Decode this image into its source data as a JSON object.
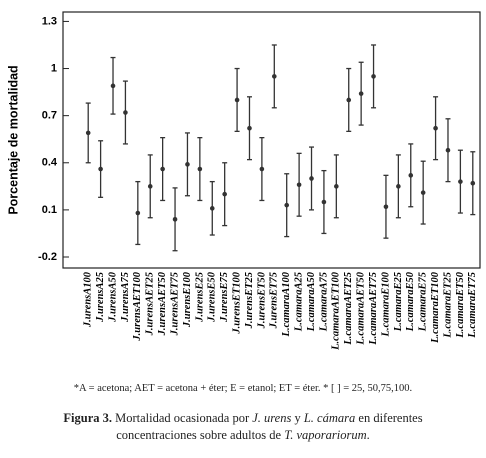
{
  "chart_data": {
    "type": "errorbar",
    "ylabel": "Porcentaje de mortalidad",
    "categories": [
      "J.urensA100",
      "J.urensA25",
      "J.urensA50",
      "J.urensA75",
      "J.urensAET100",
      "J.urensAET25",
      "J.urensAET50",
      "J.urensAET75",
      "J.urensE100",
      "J.urensE25",
      "J.urensE50",
      "J.urensE75",
      "J.urensET100",
      "J.urensET25",
      "J.urensET50",
      "J.urensET75",
      "L.camaraA100",
      "L.camaraA25",
      "L.camaraA50",
      "L.camaraA75",
      "L.camaraAET100",
      "L.camaraAET25",
      "L.camaraAET50",
      "L.camaraAET75",
      "L.camaraE100",
      "L.camaraE25",
      "L.camaraE50",
      "L.camaraE75",
      "L.camaraET100",
      "L.camaraET25",
      "L.camaraET50",
      "L.camaraET75"
    ],
    "values": [
      0.59,
      0.36,
      0.89,
      0.72,
      0.08,
      0.25,
      0.36,
      0.04,
      0.39,
      0.36,
      0.11,
      0.2,
      0.8,
      0.62,
      0.36,
      0.95,
      0.13,
      0.26,
      0.3,
      0.15,
      0.25,
      0.8,
      0.84,
      0.95,
      0.12,
      0.25,
      0.32,
      0.21,
      0.62,
      0.48,
      0.28,
      0.27
    ],
    "errors": [
      0.19,
      0.18,
      0.18,
      0.2,
      0.2,
      0.2,
      0.2,
      0.2,
      0.2,
      0.2,
      0.17,
      0.2,
      0.2,
      0.2,
      0.2,
      0.2,
      0.2,
      0.2,
      0.2,
      0.2,
      0.2,
      0.2,
      0.2,
      0.2,
      0.2,
      0.2,
      0.2,
      0.2,
      0.2,
      0.2,
      0.2,
      0.2
    ],
    "color": "#333333",
    "ylim": [
      -0.27,
      1.36
    ],
    "yticks": [
      -0.2,
      0.1,
      0.4,
      0.7,
      1,
      1.3
    ]
  },
  "footnote": "*A = acetona; AET = acetona + éter; E = etanol; ET = éter. * [ ] = 25, 50,75,100.",
  "caption": [
    "Figura 3.",
    " Mortalidad ocasionada por ",
    "J. urens",
    " y ",
    "L. cámara",
    " en diferentes concentraciones sobre adultos de ",
    "T. vaporariorum",
    "."
  ]
}
